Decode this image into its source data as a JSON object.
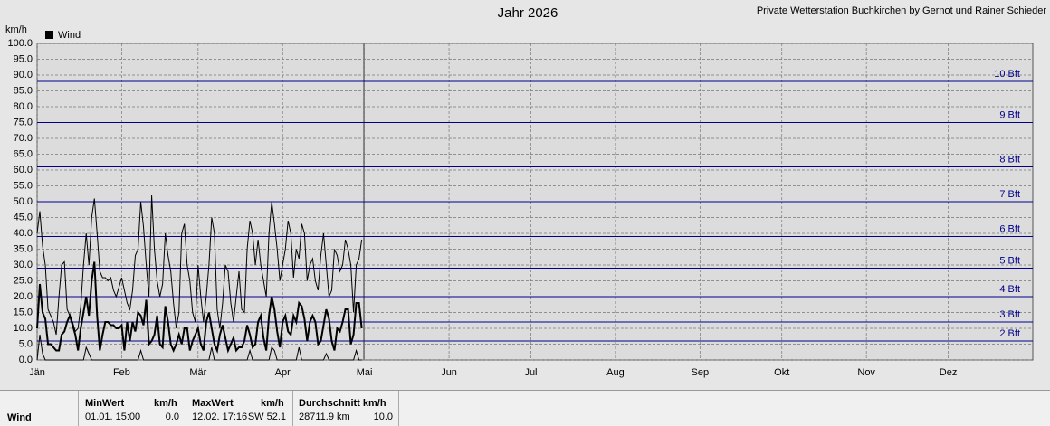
{
  "chart_data": {
    "type": "line",
    "title": "Jahr 2026",
    "subtitle": "Private Wetterstation Buchkirchen by Gernot und Rainer Schieder",
    "y_label": "km/h",
    "x": [
      0,
      1,
      2,
      3,
      4,
      5,
      6,
      7,
      8,
      9,
      10,
      11,
      12,
      13,
      14,
      15,
      16,
      17,
      18,
      19,
      20,
      21,
      22,
      23,
      24,
      25,
      26,
      27,
      28,
      29,
      30,
      31,
      32,
      33,
      34,
      35,
      36,
      37,
      38,
      39,
      40,
      41,
      42,
      43,
      44,
      45,
      46,
      47,
      48,
      49,
      50,
      51,
      52,
      53,
      54,
      55,
      56,
      57,
      58,
      59,
      60,
      61,
      62,
      63,
      64,
      65,
      66,
      67,
      68,
      69,
      70,
      71,
      72,
      73,
      74,
      75,
      76,
      77,
      78,
      79,
      80,
      81,
      82,
      83,
      84,
      85,
      86,
      87,
      88,
      89,
      90,
      91,
      92,
      93,
      94,
      95,
      96,
      97,
      98,
      99,
      100,
      101,
      102,
      103,
      104,
      105,
      106,
      107,
      108,
      109,
      110,
      111,
      112,
      113,
      114,
      115,
      116,
      117,
      118,
      119
    ],
    "series": [
      {
        "name": "Wind",
        "color": "#000000",
        "width": 2,
        "values": [
          10,
          24,
          15,
          13,
          5,
          5,
          4,
          3,
          3,
          8,
          9,
          12,
          14,
          11,
          8,
          3,
          10,
          15,
          20,
          14,
          25,
          31,
          14,
          3,
          8,
          12,
          12,
          11,
          11,
          10,
          10,
          11,
          3,
          12,
          6,
          12,
          9,
          15,
          14,
          11,
          19,
          5,
          6,
          8,
          14,
          5,
          4,
          17,
          12,
          5,
          3,
          5,
          8,
          5,
          10,
          10,
          3,
          6,
          8,
          10,
          5,
          3,
          12,
          15,
          10,
          5,
          3,
          8,
          11,
          7,
          3,
          5,
          7,
          3,
          4,
          4,
          6,
          11,
          8,
          4,
          5,
          12,
          14,
          7,
          3,
          14,
          20,
          16,
          9,
          4,
          12,
          14,
          9,
          8,
          14,
          12,
          18,
          17,
          13,
          6,
          12,
          14,
          12,
          5,
          6,
          11,
          16,
          13,
          6,
          3,
          10,
          9,
          12,
          16,
          16,
          5,
          8,
          18,
          18,
          10
        ]
      },
      {
        "color": "#000000",
        "width": 1,
        "values": [
          40,
          47,
          36,
          30,
          16,
          14,
          12,
          8,
          20,
          30,
          31,
          16,
          14,
          12,
          9,
          10,
          17,
          30,
          40,
          30,
          45,
          51,
          40,
          28,
          26,
          26,
          25,
          26,
          22,
          20,
          23,
          26,
          22,
          18,
          16,
          22,
          33,
          35,
          50,
          42,
          30,
          20,
          52,
          35,
          25,
          20,
          24,
          40,
          33,
          28,
          18,
          10,
          15,
          40,
          43,
          30,
          25,
          15,
          12,
          30,
          20,
          12,
          20,
          30,
          45,
          40,
          16,
          10,
          18,
          30,
          28,
          18,
          12,
          20,
          28,
          16,
          15,
          35,
          44,
          40,
          30,
          38,
          30,
          25,
          20,
          40,
          50,
          43,
          35,
          25,
          30,
          35,
          44,
          40,
          26,
          35,
          32,
          43,
          40,
          25,
          30,
          32,
          25,
          22,
          33,
          40,
          30,
          20,
          22,
          35,
          33,
          28,
          30,
          38,
          35,
          30,
          15,
          30,
          32,
          38
        ]
      },
      {
        "color": "#000000",
        "width": 1,
        "values": [
          0,
          8,
          2,
          0,
          0,
          0,
          0,
          0,
          0,
          0,
          0,
          0,
          0,
          0,
          0,
          0,
          0,
          0,
          4,
          2,
          0,
          0,
          0,
          0,
          0,
          0,
          0,
          0,
          0,
          0,
          0,
          0,
          0,
          0,
          0,
          0,
          0,
          0,
          3,
          0,
          0,
          0,
          0,
          0,
          0,
          0,
          0,
          0,
          0,
          0,
          0,
          0,
          0,
          0,
          0,
          0,
          0,
          0,
          0,
          0,
          0,
          0,
          0,
          0,
          4,
          0,
          0,
          0,
          0,
          0,
          0,
          0,
          0,
          0,
          0,
          0,
          0,
          0,
          3,
          0,
          0,
          0,
          0,
          0,
          0,
          0,
          4,
          3,
          0,
          0,
          0,
          0,
          0,
          0,
          0,
          0,
          4,
          0,
          0,
          0,
          0,
          0,
          0,
          0,
          0,
          0,
          2,
          0,
          0,
          0,
          0,
          0,
          0,
          0,
          0,
          0,
          0,
          3,
          0,
          0
        ]
      }
    ],
    "xlim": [
      0,
      365
    ],
    "xticks": [
      {
        "value": 0,
        "label": "Jän"
      },
      {
        "value": 31,
        "label": "Feb"
      },
      {
        "value": 59,
        "label": "Mär"
      },
      {
        "value": 90,
        "label": "Apr"
      },
      {
        "value": 120,
        "label": "Mai"
      },
      {
        "value": 151,
        "label": "Jun"
      },
      {
        "value": 181,
        "label": "Jul"
      },
      {
        "value": 212,
        "label": "Aug"
      },
      {
        "value": 243,
        "label": "Sep"
      },
      {
        "value": 273,
        "label": "Okt"
      },
      {
        "value": 304,
        "label": "Nov"
      },
      {
        "value": 334,
        "label": "Dez"
      }
    ],
    "ylim": [
      0,
      100
    ],
    "yticks": [
      {
        "value": 0,
        "label": "0.0"
      },
      {
        "value": 5,
        "label": "5.0"
      },
      {
        "value": 10,
        "label": "10.0"
      },
      {
        "value": 15,
        "label": "15.0"
      },
      {
        "value": 20,
        "label": "20.0"
      },
      {
        "value": 25,
        "label": "25.0"
      },
      {
        "value": 30,
        "label": "30.0"
      },
      {
        "value": 35,
        "label": "35.0"
      },
      {
        "value": 40,
        "label": "40.0"
      },
      {
        "value": 45,
        "label": "45.0"
      },
      {
        "value": 50,
        "label": "50.0"
      },
      {
        "value": 55,
        "label": "55.0"
      },
      {
        "value": 60,
        "label": "60.0"
      },
      {
        "value": 65,
        "label": "65.0"
      },
      {
        "value": 70,
        "label": "70.0"
      },
      {
        "value": 75,
        "label": "75.0"
      },
      {
        "value": 80,
        "label": "80.0"
      },
      {
        "value": 85,
        "label": "85.0"
      },
      {
        "value": 90,
        "label": "90.0"
      },
      {
        "value": 95,
        "label": "95.0"
      },
      {
        "value": 100,
        "label": "100.0"
      }
    ],
    "grid": true,
    "reference_lines": [
      {
        "value": 6,
        "label": "2 Bft"
      },
      {
        "value": 12,
        "label": "3 Bft"
      },
      {
        "value": 20,
        "label": "4 Bft"
      },
      {
        "value": 29,
        "label": "5 Bft"
      },
      {
        "value": 39,
        "label": "6 Bft"
      },
      {
        "value": 50,
        "label": "7 Bft"
      },
      {
        "value": 61,
        "label": "8 Bft"
      },
      {
        "value": 75,
        "label": "9 Bft"
      },
      {
        "value": 88,
        "label": "10 Bft"
      }
    ],
    "reference_color": "#00008b"
  },
  "stats_table": {
    "row_label": "Wind",
    "min": {
      "header": "MinWert",
      "unit": "km/h",
      "time": "01.01.  15:00",
      "value": "0.0"
    },
    "max": {
      "header": "MaxWert",
      "unit": "km/h",
      "time": "12.02.  17:16",
      "value": "SW 52.1"
    },
    "avg": {
      "header": "Durchschnitt km/h",
      "distance": "28711.9 km",
      "value": "10.0"
    }
  }
}
